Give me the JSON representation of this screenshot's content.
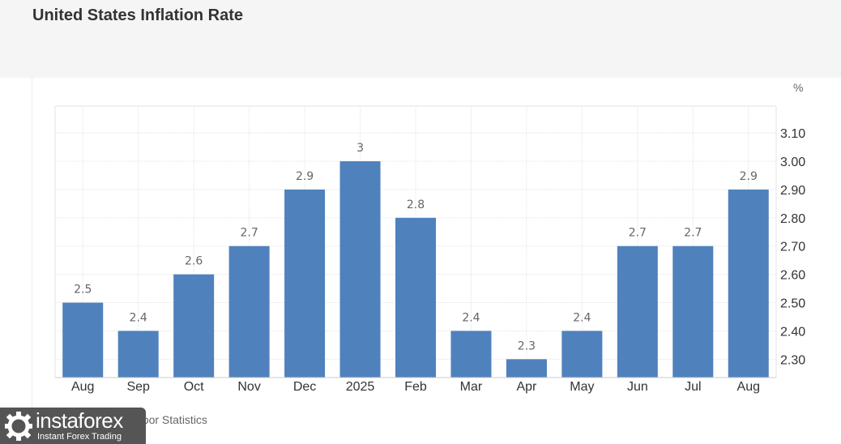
{
  "header": {
    "title": "United States Inflation Rate"
  },
  "source": {
    "text": "abor Statistics"
  },
  "watermark": {
    "brand": "instaforex",
    "tagline": "Instant Forex Trading"
  },
  "colors": {
    "bar": "#4f81bd",
    "grid": "#e3e3e3",
    "tick_text": "#333333",
    "label_text": "#666666",
    "header_bg": "#f5f5f5"
  },
  "chart_data": {
    "type": "bar",
    "title": "United States Inflation Rate",
    "unit_label": "%",
    "categories": [
      "Aug",
      "Sep",
      "Oct",
      "Nov",
      "Dec",
      "2025",
      "Feb",
      "Mar",
      "Apr",
      "May",
      "Jun",
      "Jul",
      "Aug"
    ],
    "values": [
      2.5,
      2.4,
      2.6,
      2.7,
      2.9,
      3,
      2.8,
      2.4,
      2.3,
      2.4,
      2.7,
      2.7,
      2.9
    ],
    "value_labels": [
      "2.5",
      "2.4",
      "2.6",
      "2.7",
      "2.9",
      "3",
      "2.8",
      "2.4",
      "2.3",
      "2.4",
      "2.7",
      "2.7",
      "2.9"
    ],
    "y_ticks": [
      "2.30",
      "2.40",
      "2.50",
      "2.60",
      "2.70",
      "2.80",
      "2.90",
      "3.00",
      "3.10"
    ],
    "ylim": [
      2.235,
      3.195
    ],
    "y_axis_position": "right",
    "grid": true
  }
}
